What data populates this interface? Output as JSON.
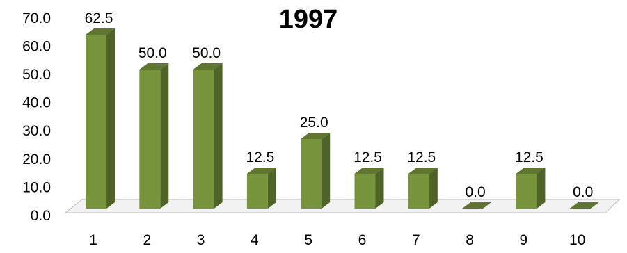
{
  "chart_data": {
    "type": "bar",
    "title": "1997",
    "categories": [
      "1",
      "2",
      "3",
      "4",
      "5",
      "6",
      "7",
      "8",
      "9",
      "10"
    ],
    "values": [
      62.5,
      50.0,
      50.0,
      12.5,
      25.0,
      12.5,
      12.5,
      0.0,
      12.5,
      0.0
    ],
    "data_labels": [
      "62.5",
      "50.0",
      "50.0",
      "12.5",
      "25.0",
      "12.5",
      "12.5",
      "0.0",
      "12.5",
      "0.0"
    ],
    "y_ticks": [
      "0.0",
      "10.0",
      "20.0",
      "30.0",
      "40.0",
      "50.0",
      "60.0",
      "70.0"
    ],
    "ylim": [
      0,
      70
    ],
    "xlabel": "",
    "ylabel": "",
    "grid": false,
    "legend": "none",
    "bar_colors": {
      "front": "#77933C",
      "side": "#4F6228",
      "top": "#5F7530"
    },
    "floor_color": "#F2F2F2"
  }
}
